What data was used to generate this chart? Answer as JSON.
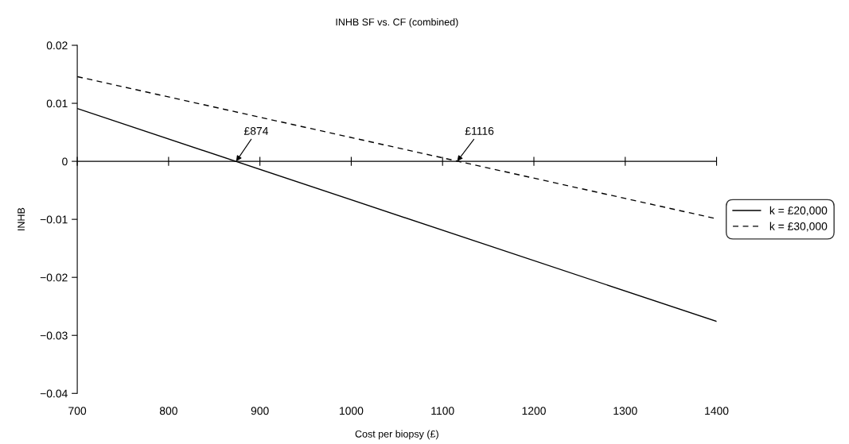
{
  "chart_data": {
    "type": "line",
    "title": "INHB SF vs. CF (combined)",
    "xlabel": "Cost per biopsy (£)",
    "ylabel": "INHB",
    "x": [
      700,
      1400
    ],
    "series": [
      {
        "name": "k = £20,000",
        "color": "#000000",
        "values": [
          0.0091,
          -0.0276
        ],
        "line_style": "solid"
      },
      {
        "name": "k = £30,000",
        "color": "#000000",
        "values": [
          0.0146,
          -0.0099
        ],
        "line_style": "dashed"
      }
    ],
    "xlim": [
      700,
      1400
    ],
    "xticks": [
      700,
      800,
      900,
      1000,
      1100,
      1200,
      1300,
      1400
    ],
    "ylim": [
      -0.04,
      0.02
    ],
    "yticks": [
      {
        "value": -0.04,
        "label": "−0.04"
      },
      {
        "value": -0.03,
        "label": "−0.03"
      },
      {
        "value": -0.02,
        "label": "−0.02"
      },
      {
        "value": -0.01,
        "label": "−0.01"
      },
      0,
      0.01,
      0.02
    ],
    "annotations": [
      {
        "text": "£874",
        "x": 874,
        "y": 0
      },
      {
        "text": "£1116",
        "x": 1116,
        "y": 0
      }
    ],
    "ref_lines": [
      {
        "axis": "y",
        "value": 0,
        "color": "#000000",
        "line_style": "solid"
      }
    ],
    "legend": "right",
    "grid": false,
    "marker": "none"
  }
}
